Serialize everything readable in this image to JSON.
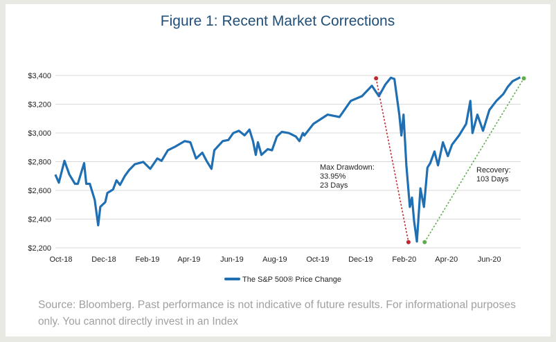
{
  "chart_data": {
    "type": "line",
    "title": "Figure 1:  Recent Market Corrections",
    "xlabel": "",
    "ylabel": "",
    "ylim": [
      2200,
      3400
    ],
    "y_ticks": [
      2200,
      2400,
      2600,
      2800,
      3000,
      3200,
      3400
    ],
    "y_tick_labels": [
      "$2,200",
      "$2,400",
      "$2,600",
      "$2,800",
      "$3,000",
      "$3,200",
      "$3,400"
    ],
    "x_ticks": [
      "2018-10-01",
      "2018-12-01",
      "2019-02-01",
      "2019-04-01",
      "2019-06-01",
      "2019-08-01",
      "2019-10-01",
      "2019-12-01",
      "2020-02-01",
      "2020-04-01",
      "2020-06-01"
    ],
    "x_tick_labels": [
      "Oct-18",
      "Dec-18",
      "Feb-19",
      "Apr-19",
      "Jun-19",
      "Aug-19",
      "Oct-19",
      "Dec-19",
      "Feb-20",
      "Apr-20",
      "Jun-20"
    ],
    "grid": "horizontal",
    "legend_placement": "bottom",
    "series": [
      {
        "name": "The S&P 500® Price Change",
        "color": "#1f6fb2",
        "points": [
          [
            "2018-09-23",
            2710
          ],
          [
            "2018-09-28",
            2654
          ],
          [
            "2018-10-06",
            2806
          ],
          [
            "2018-10-13",
            2710
          ],
          [
            "2018-10-21",
            2646
          ],
          [
            "2018-10-25",
            2646
          ],
          [
            "2018-11-03",
            2790
          ],
          [
            "2018-11-06",
            2646
          ],
          [
            "2018-11-11",
            2646
          ],
          [
            "2018-11-18",
            2534
          ],
          [
            "2018-11-23",
            2357
          ],
          [
            "2018-11-26",
            2486
          ],
          [
            "2018-12-03",
            2518
          ],
          [
            "2018-12-06",
            2582
          ],
          [
            "2018-12-14",
            2606
          ],
          [
            "2018-12-19",
            2670
          ],
          [
            "2018-12-24",
            2638
          ],
          [
            "2018-12-31",
            2702
          ],
          [
            "2019-01-06",
            2742
          ],
          [
            "2019-01-14",
            2782
          ],
          [
            "2019-01-26",
            2798
          ],
          [
            "2019-02-05",
            2750
          ],
          [
            "2019-02-15",
            2822
          ],
          [
            "2019-02-21",
            2806
          ],
          [
            "2019-03-02",
            2879
          ],
          [
            "2019-03-12",
            2903
          ],
          [
            "2019-03-26",
            2943
          ],
          [
            "2019-04-03",
            2935
          ],
          [
            "2019-04-11",
            2822
          ],
          [
            "2019-04-20",
            2862
          ],
          [
            "2019-04-26",
            2806
          ],
          [
            "2019-05-03",
            2750
          ],
          [
            "2019-05-07",
            2879
          ],
          [
            "2019-05-19",
            2943
          ],
          [
            "2019-05-27",
            2951
          ],
          [
            "2019-06-03",
            2999
          ],
          [
            "2019-06-11",
            3015
          ],
          [
            "2019-06-19",
            2983
          ],
          [
            "2019-06-26",
            3023
          ],
          [
            "2019-07-01",
            2943
          ],
          [
            "2019-07-05",
            2847
          ],
          [
            "2019-07-08",
            2935
          ],
          [
            "2019-07-13",
            2847
          ],
          [
            "2019-07-22",
            2887
          ],
          [
            "2019-07-28",
            2879
          ],
          [
            "2019-08-04",
            2975
          ],
          [
            "2019-08-11",
            3007
          ],
          [
            "2019-08-21",
            2999
          ],
          [
            "2019-08-31",
            2975
          ],
          [
            "2019-09-05",
            2943
          ],
          [
            "2019-09-10",
            2999
          ],
          [
            "2019-09-12",
            2982
          ],
          [
            "2019-09-25",
            3063
          ],
          [
            "2019-10-15",
            3127
          ],
          [
            "2019-11-01",
            3111
          ],
          [
            "2019-11-17",
            3223
          ],
          [
            "2019-12-03",
            3256
          ],
          [
            "2019-12-17",
            3328
          ],
          [
            "2019-12-27",
            3256
          ],
          [
            "2020-01-05",
            3336
          ],
          [
            "2020-01-13",
            3384
          ],
          [
            "2020-01-18",
            3376
          ],
          [
            "2020-01-25",
            3127
          ],
          [
            "2020-01-28",
            2982
          ],
          [
            "2020-01-31",
            3127
          ],
          [
            "2020-02-04",
            2774
          ],
          [
            "2020-02-09",
            2485
          ],
          [
            "2020-02-12",
            2550
          ],
          [
            "2020-02-15",
            2389
          ],
          [
            "2020-02-19",
            2244
          ],
          [
            "2020-02-24",
            2614
          ],
          [
            "2020-02-29",
            2485
          ],
          [
            "2020-03-05",
            2758
          ],
          [
            "2020-03-09",
            2790
          ],
          [
            "2020-03-15",
            2871
          ],
          [
            "2020-03-20",
            2774
          ],
          [
            "2020-03-27",
            2935
          ],
          [
            "2020-04-03",
            2839
          ],
          [
            "2020-04-09",
            2919
          ],
          [
            "2020-04-19",
            2983
          ],
          [
            "2020-04-29",
            3063
          ],
          [
            "2020-05-05",
            3223
          ],
          [
            "2020-05-08",
            2999
          ],
          [
            "2020-05-15",
            3127
          ],
          [
            "2020-05-23",
            3015
          ],
          [
            "2020-06-01",
            3159
          ],
          [
            "2020-06-11",
            3223
          ],
          [
            "2020-06-21",
            3272
          ],
          [
            "2020-06-27",
            3320
          ],
          [
            "2020-07-04",
            3360
          ],
          [
            "2020-07-15",
            3387
          ]
        ]
      }
    ],
    "annotations": [
      {
        "text": [
          "Max Drawdown:",
          "33.95%",
          "23 Days"
        ],
        "color": "#c0272d",
        "line_from": [
          "2019-12-23",
          3380
        ],
        "line_to": [
          "2020-02-07",
          2240
        ]
      },
      {
        "text": [
          "Recovery:",
          "103 Days"
        ],
        "color": "#5fae4e",
        "line_from": [
          "2020-03-01",
          2240
        ],
        "line_to": [
          "2020-07-20",
          3380
        ]
      }
    ]
  },
  "footer": {
    "source_lines": [
      "Source: Bloomberg. Past performance is not indicative of future results. For informational purposes",
      "only. You cannot directly invest in an Index"
    ]
  },
  "colors": {
    "title": "#1f4e79",
    "line": "#1f6fb2",
    "grid": "#d9d9d9",
    "source_text": "#a0a0a0",
    "frame": "#e9e9e3"
  }
}
